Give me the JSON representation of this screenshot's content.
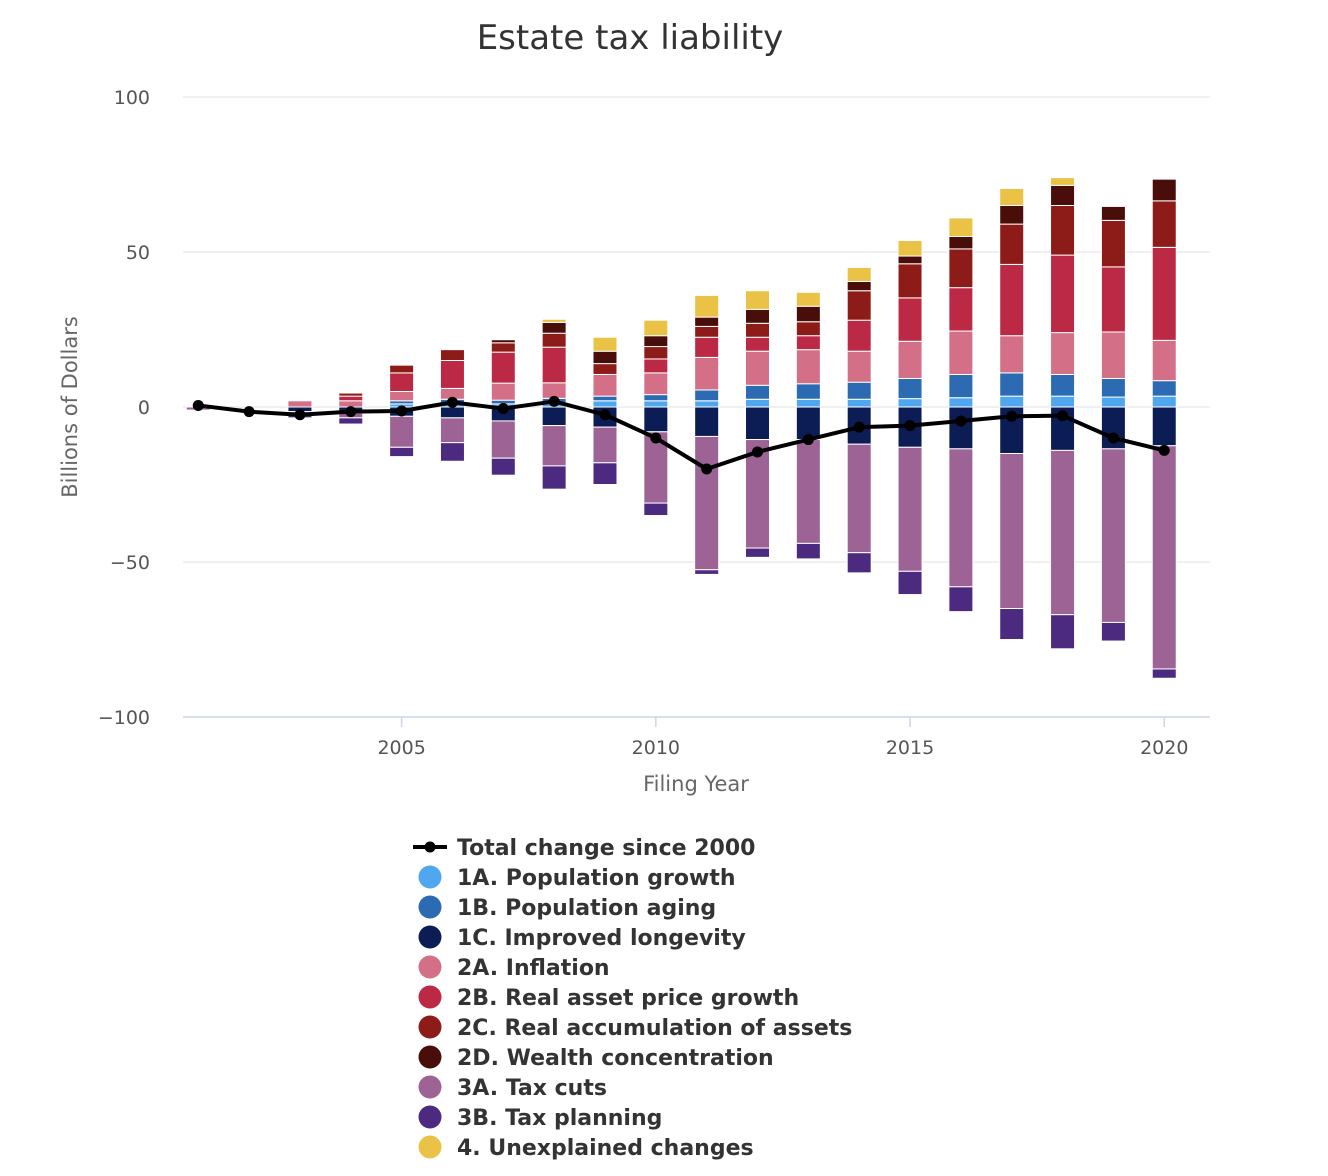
{
  "chart_data": {
    "type": "bar",
    "stacked": true,
    "title": "Estate tax liability",
    "xlabel": "Filing Year",
    "ylabel": "Billions of Dollars",
    "xlim": [
      2000.7,
      2020.9
    ],
    "ylim": [
      -100,
      100
    ],
    "yticks": [
      100,
      50,
      0,
      -50,
      -100
    ],
    "yticklabels": [
      "100",
      "50",
      "0",
      "−50",
      "−100"
    ],
    "xticks": [
      2005,
      2010,
      2015,
      2020
    ],
    "xticklabels": [
      "2005",
      "2010",
      "2015",
      "2020"
    ],
    "grid": true,
    "legend_position": "bottom",
    "x": [
      2001,
      2002,
      2003,
      2004,
      2005,
      2006,
      2007,
      2008,
      2009,
      2010,
      2011,
      2012,
      2013,
      2014,
      2015,
      2016,
      2017,
      2018,
      2019,
      2020
    ],
    "line": {
      "name": "Total change since 2000",
      "color": "#000000",
      "values": [
        0.5,
        -1.5,
        -2.5,
        -1.5,
        -1.3,
        1.5,
        -0.5,
        1.8,
        -2.5,
        -10,
        -20,
        -14.5,
        -10.5,
        -6.5,
        -6,
        -4.5,
        -3,
        -2.8,
        -10,
        -14
      ]
    },
    "series": [
      {
        "name": "1A. Population growth",
        "color": "#4fa7ef",
        "values": [
          0,
          0,
          0,
          0,
          1.0,
          1.0,
          1.0,
          1.3,
          2.0,
          2.0,
          2.0,
          2.5,
          2.5,
          2.5,
          2.7,
          3.0,
          3.5,
          3.5,
          3.2,
          3.5
        ]
      },
      {
        "name": "1B. Population aging",
        "color": "#2c6bb2",
        "values": [
          0,
          0,
          0,
          0,
          1.0,
          1.5,
          1.2,
          1.5,
          1.5,
          2.0,
          3.5,
          4.5,
          5.0,
          5.5,
          6.5,
          7.5,
          7.5,
          7.0,
          6.0,
          5.0
        ]
      },
      {
        "name": "1C. Improved longevity",
        "color": "#0c1d55",
        "values": [
          0,
          0,
          -1.5,
          -2.0,
          -3.0,
          -3.5,
          -4.5,
          -6.0,
          -6.5,
          -8.0,
          -9.5,
          -10.5,
          -10.5,
          -12.0,
          -13.0,
          -13.5,
          -15.0,
          -14.0,
          -13.5,
          -12.5
        ]
      },
      {
        "name": "2A. Inflation",
        "color": "#d36f87",
        "values": [
          0,
          0,
          2.0,
          2.0,
          3.0,
          3.5,
          5.5,
          5.0,
          7.0,
          7.0,
          10.5,
          11.0,
          11.0,
          10.0,
          12.0,
          14.0,
          12.0,
          13.5,
          15.0,
          13.0
        ]
      },
      {
        "name": "2B. Real asset price growth",
        "color": "#bc2945",
        "values": [
          0,
          0,
          0,
          1.5,
          6.0,
          9.0,
          10.0,
          11.5,
          0,
          4.5,
          6.5,
          4.5,
          4.5,
          10.0,
          14.0,
          14.0,
          23.0,
          25.0,
          21.0,
          30.0
        ]
      },
      {
        "name": "2C. Real accumulation of assets",
        "color": "#8d1c18",
        "values": [
          0,
          0,
          0,
          1.0,
          2.5,
          3.5,
          3.0,
          4.5,
          3.5,
          4.0,
          3.5,
          4.5,
          4.5,
          9.5,
          11.0,
          12.5,
          13.0,
          16.0,
          15.0,
          15.0
        ]
      },
      {
        "name": "2D. Wealth concentration",
        "color": "#4a0e0a",
        "values": [
          0,
          0,
          0,
          0,
          0,
          0,
          1.0,
          3.5,
          4.0,
          3.5,
          3.0,
          4.5,
          5.0,
          3.0,
          2.5,
          4.0,
          6.0,
          6.5,
          4.5,
          7.0
        ]
      },
      {
        "name": "3A. Tax cuts",
        "color": "#9c6394",
        "values": [
          -1.0,
          0,
          -1.0,
          -1.5,
          -10.0,
          -8.0,
          -12.0,
          -13.0,
          -11.5,
          -23.0,
          -43.0,
          -35.0,
          -33.5,
          -35.0,
          -40.0,
          -44.5,
          -50.0,
          -53.0,
          -56.0,
          -72.0
        ]
      },
      {
        "name": "3B. Tax planning",
        "color": "#4c2a80",
        "values": [
          0,
          0,
          -1.0,
          -2.0,
          -3.0,
          -6.0,
          -5.5,
          -7.5,
          -7.0,
          -4.0,
          -1.5,
          -3.0,
          -5.0,
          -6.5,
          -7.5,
          -8.0,
          -10.0,
          -11.0,
          -6.0,
          -3.0
        ]
      },
      {
        "name": "4. Unexplained changes",
        "color": "#eac245",
        "values": [
          0,
          0,
          0,
          0,
          0,
          0,
          0,
          1.0,
          4.5,
          5.0,
          7.0,
          6.0,
          4.5,
          4.5,
          5.0,
          6.0,
          5.5,
          2.5,
          0,
          0
        ]
      }
    ],
    "legend": [
      "Total change since 2000",
      "1A. Population growth",
      "1B. Population aging",
      "1C. Improved longevity",
      "2A. Inflation",
      "2B. Real asset price growth",
      "2C. Real accumulation of assets",
      "2D. Wealth concentration",
      "3A. Tax cuts",
      "3B. Tax planning",
      "4. Unexplained changes"
    ]
  }
}
